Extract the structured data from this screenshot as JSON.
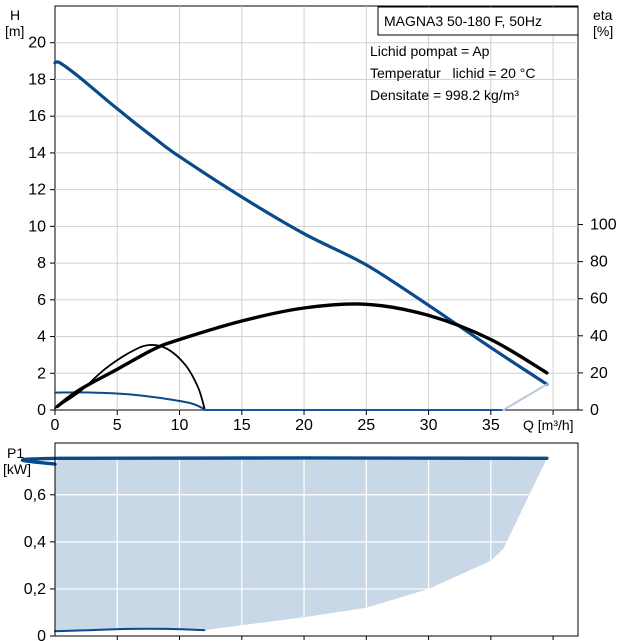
{
  "chart_data": [
    {
      "type": "line",
      "title": "MAGNA3 50-180 F, 50Hz",
      "annotations": [
        "Lichid pompat = Ap",
        "Temperatur   lichid = 20 °C",
        "Densitate = 998.2 kg/m³"
      ],
      "ylabel_line1": "H",
      "ylabel_line2": "[m]",
      "y2label_line1": "eta",
      "y2label_line2": "[%]",
      "xlabel": "Q [m³/h]",
      "xlim": [
        0,
        42
      ],
      "ylim": [
        0,
        22
      ],
      "y2lim": [
        0,
        100
      ],
      "grid": true,
      "x_ticks": [
        "0",
        "5",
        "10",
        "15",
        "20",
        "25",
        "30",
        "35"
      ],
      "y_ticks": [
        "0",
        "2",
        "4",
        "6",
        "8",
        "10",
        "12",
        "14",
        "16",
        "18",
        "20"
      ],
      "y2_ticks": [
        "0",
        "20",
        "40",
        "60",
        "80",
        "100"
      ],
      "series": [
        {
          "role": "head-max",
          "axis": "left",
          "color": "#0a4a8a",
          "points": [
            [
              0,
              18.9
            ],
            [
              0.4,
              18.9
            ],
            [
              2,
              18.1
            ],
            [
              5,
              16.4
            ],
            [
              8,
              14.8
            ],
            [
              10,
              13.8
            ],
            [
              15,
              11.6
            ],
            [
              20,
              9.6
            ],
            [
              25,
              7.9
            ],
            [
              30,
              5.7
            ],
            [
              35,
              3.4
            ],
            [
              39.5,
              1.4
            ]
          ]
        },
        {
          "role": "head-min",
          "axis": "left",
          "color": "#0a4a8a",
          "points": [
            [
              0,
              0.95
            ],
            [
              3,
              0.95
            ],
            [
              6,
              0.85
            ],
            [
              9,
              0.6
            ],
            [
              11,
              0.35
            ],
            [
              12,
              0.05
            ]
          ]
        },
        {
          "role": "efficiency-max",
          "axis": "right",
          "color": "#000000",
          "points": [
            [
              0.2,
              2
            ],
            [
              2,
              11
            ],
            [
              5,
              22
            ],
            [
              8,
              33
            ],
            [
              10,
              38
            ],
            [
              15,
              48
            ],
            [
              20,
              55
            ],
            [
              25,
              57
            ],
            [
              30,
              51
            ],
            [
              35,
              38
            ],
            [
              39.5,
              20
            ]
          ]
        },
        {
          "role": "efficiency-min",
          "axis": "right",
          "color": "#000000",
          "points": [
            [
              0,
              1
            ],
            [
              2,
              10
            ],
            [
              4,
              22
            ],
            [
              6,
              31
            ],
            [
              7.5,
              35
            ],
            [
              9,
              33
            ],
            [
              10.5,
              24
            ],
            [
              11.5,
              12
            ],
            [
              12,
              1
            ]
          ]
        },
        {
          "role": "zero-line",
          "axis": "left",
          "color": "#1a5aa0",
          "points": [
            [
              12,
              0
            ],
            [
              36,
              0
            ]
          ]
        },
        {
          "role": "envelope-right",
          "axis": "left",
          "color": "#b8c8dc",
          "points": [
            [
              36,
              0
            ],
            [
              39.5,
              1.4
            ]
          ]
        }
      ]
    },
    {
      "type": "area",
      "ylabel_line1": "P1",
      "ylabel_line2": "[kW]",
      "xlim": [
        0,
        42
      ],
      "ylim": [
        0,
        0.82
      ],
      "grid": true,
      "y_ticks": [
        "0",
        "0,2",
        "0,4",
        "0,6"
      ],
      "y_tick_values": [
        0,
        0.2,
        0.4,
        0.6
      ],
      "area_color": "#c9d8e6",
      "series": [
        {
          "role": "power-max",
          "color": "#0a4a8a",
          "points": [
            [
              0,
              0.73
            ],
            [
              0.4,
              0.755
            ],
            [
              39.5,
              0.755
            ]
          ]
        },
        {
          "role": "power-min",
          "color": "#0a4a8a",
          "points": [
            [
              0,
              0.02
            ],
            [
              3,
              0.025
            ],
            [
              6,
              0.03
            ],
            [
              9,
              0.03
            ],
            [
              12,
              0.025
            ]
          ]
        },
        {
          "role": "power-envelope-lower",
          "points": [
            [
              12,
              0.025
            ],
            [
              20,
              0.08
            ],
            [
              25,
              0.12
            ],
            [
              30,
              0.2
            ],
            [
              35,
              0.32
            ],
            [
              36,
              0.37
            ],
            [
              39.5,
              0.755
            ]
          ]
        }
      ]
    }
  ]
}
